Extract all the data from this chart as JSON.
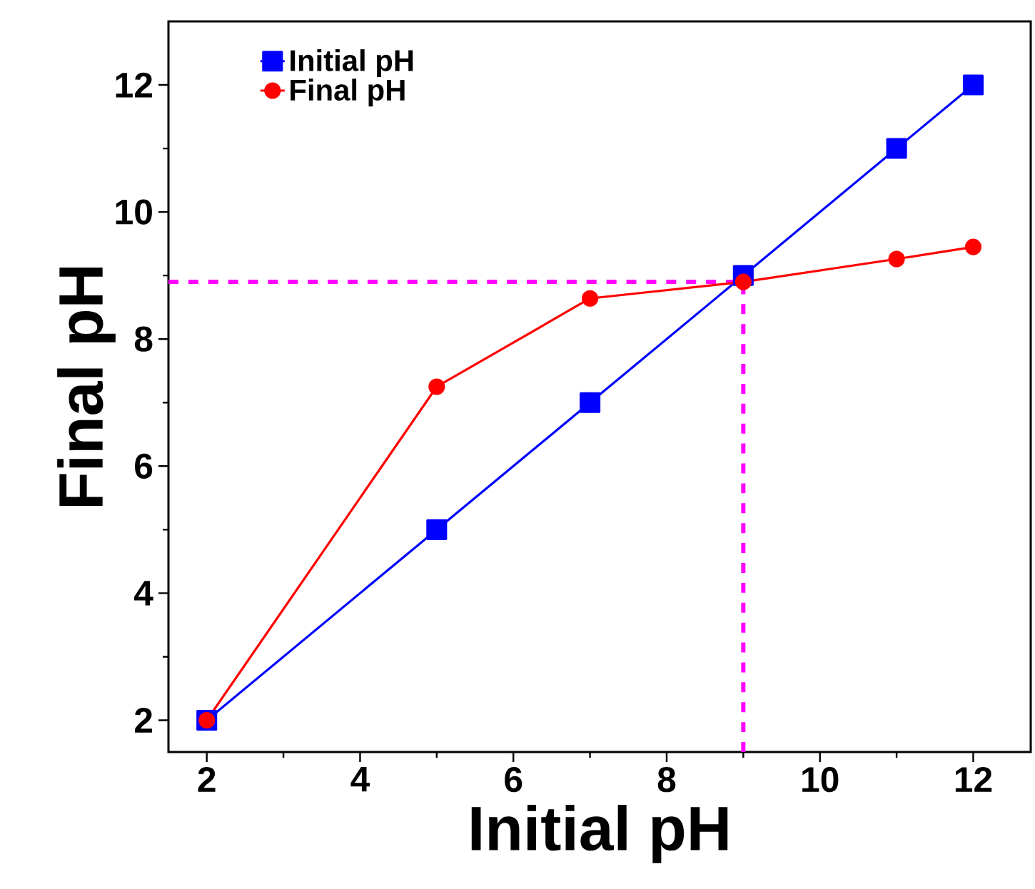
{
  "chart_data": {
    "type": "line",
    "xlabel": "Initial pH",
    "ylabel": "Final pH",
    "x": [
      2,
      5,
      7,
      9,
      11,
      12
    ],
    "series": [
      {
        "name": "Initial pH",
        "color": "#0000ff",
        "marker": "square",
        "values": [
          2,
          5,
          7,
          9,
          11,
          12
        ]
      },
      {
        "name": "Final pH",
        "color": "#ff0000",
        "marker": "circle",
        "values": [
          2.0,
          7.25,
          8.64,
          8.9,
          9.26,
          9.45
        ]
      }
    ],
    "xlim": [
      1.5,
      12.75
    ],
    "ylim": [
      1.5,
      13
    ],
    "xticks": [
      2,
      4,
      6,
      8,
      10,
      12
    ],
    "yticks": [
      2,
      4,
      6,
      8,
      10,
      12
    ],
    "ref_lines": [
      {
        "axis": "y",
        "value": 8.9,
        "color": "#ff00ff",
        "line_style": "dashed"
      },
      {
        "axis": "x",
        "value": 9,
        "color": "#ff00ff",
        "line_style": "dashed"
      }
    ],
    "legend": "top left",
    "grid": false,
    "line_style": "solid"
  }
}
